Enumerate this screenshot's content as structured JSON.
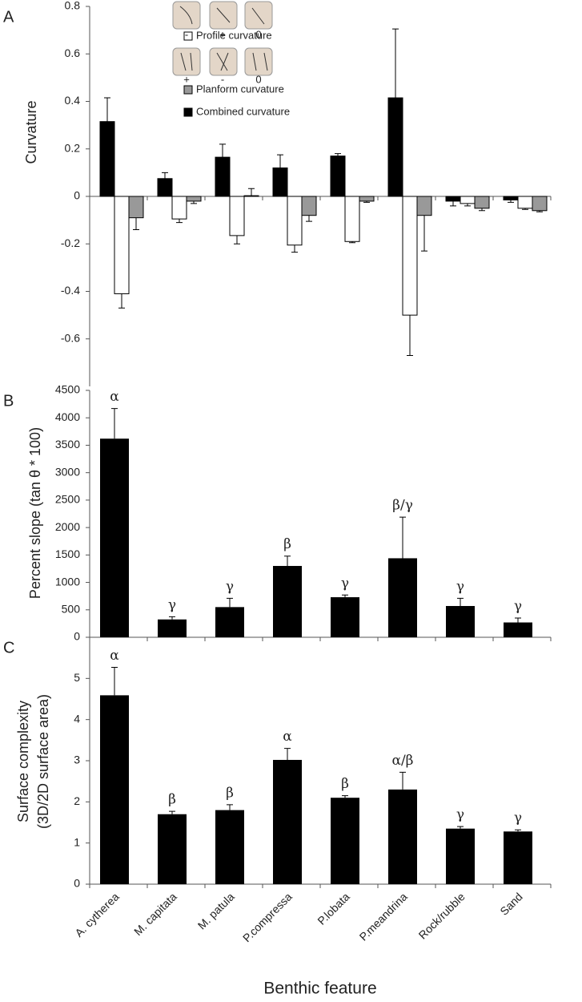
{
  "chart_data": [
    {
      "type": "grouped-bar",
      "panel_label": "A",
      "ylabel": "Curvature",
      "ylim": [
        -0.8,
        0.8
      ],
      "yticks": [
        -0.6,
        -0.4,
        -0.2,
        0,
        0.2,
        0.4,
        0.6,
        0.8
      ],
      "legend_icon_labels": [
        [
          "-",
          "+",
          "0"
        ],
        [
          "+",
          "-",
          "0"
        ]
      ],
      "series": [
        {
          "name": "Combined curvature",
          "color": "#000000",
          "values": [
            0.315,
            0.075,
            0.165,
            0.12,
            0.17,
            0.415,
            -0.02,
            -0.015
          ],
          "errors": [
            0.1,
            0.025,
            0.055,
            0.055,
            0.01,
            0.29,
            0.02,
            0.01
          ]
        },
        {
          "name": "Profile curvature",
          "color": "#ffffff",
          "values": [
            -0.41,
            -0.095,
            -0.165,
            -0.205,
            -0.19,
            -0.5,
            -0.03,
            -0.05
          ],
          "errors": [
            0.06,
            0.015,
            0.035,
            0.03,
            0.005,
            0.17,
            0.01,
            0.005
          ]
        },
        {
          "name": "Planform curvature",
          "color": "#999999",
          "values": [
            -0.09,
            -0.02,
            0.003,
            -0.08,
            -0.02,
            -0.08,
            -0.05,
            -0.06
          ],
          "errors": [
            0.05,
            0.01,
            0.03,
            0.025,
            0.005,
            0.15,
            0.01,
            0.005
          ]
        }
      ]
    },
    {
      "type": "bar",
      "panel_label": "B",
      "ylabel": "Percent slope (tan θ * 100)",
      "ylim": [
        0,
        4500
      ],
      "yticks": [
        0,
        500,
        1000,
        1500,
        2000,
        2500,
        3000,
        3500,
        4000,
        4500
      ],
      "color": "#000000",
      "values": [
        3620,
        325,
        550,
        1300,
        730,
        1440,
        570,
        270
      ],
      "errors": [
        550,
        50,
        160,
        180,
        40,
        750,
        140,
        80
      ],
      "annotations": [
        "α",
        "γ",
        "γ",
        "β",
        "γ",
        "β/γ",
        "γ",
        "γ"
      ]
    },
    {
      "type": "bar",
      "panel_label": "C",
      "ylabel": [
        "Surface complexity",
        "(3D/2D surface area)"
      ],
      "xlabel": "Benthic feature",
      "categories": [
        "A. cytherea",
        "M. capitata",
        "M. patula",
        "P.compressa",
        "P.lobata",
        "P.meandrina",
        "Rock/rubble",
        "Sand"
      ],
      "ylim": [
        0,
        6
      ],
      "yticks": [
        0,
        1,
        2,
        3,
        4,
        5
      ],
      "color": "#000000",
      "values": [
        4.59,
        1.7,
        1.8,
        3.02,
        2.1,
        2.3,
        1.35,
        1.28
      ],
      "errors": [
        0.68,
        0.07,
        0.13,
        0.28,
        0.05,
        0.42,
        0.05,
        0.04
      ],
      "annotations": [
        "α",
        "β",
        "β",
        "α",
        "β",
        "α/β",
        "γ",
        "γ"
      ]
    }
  ]
}
